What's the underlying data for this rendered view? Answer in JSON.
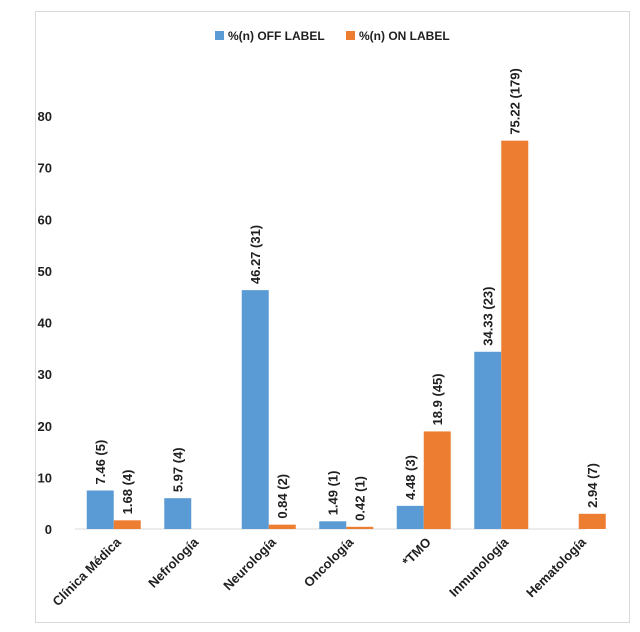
{
  "chart_data": {
    "type": "bar",
    "title": "",
    "xlabel": "",
    "ylabel": "",
    "ylim": [
      0,
      80
    ],
    "yticks": [
      0,
      10,
      20,
      30,
      40,
      50,
      60,
      70,
      80
    ],
    "grid": false,
    "legend_position": "top-center",
    "categories": [
      "Clínica Médica",
      "Nefrología",
      "Neurología",
      "Oncología",
      "*TMO",
      "Inmunología",
      "Hematología"
    ],
    "series": [
      {
        "name": "%(n) OFF LABEL",
        "color": "#5b9bd5",
        "values": [
          7.46,
          5.97,
          46.27,
          1.49,
          4.48,
          34.33,
          null
        ],
        "labels": [
          "7.46 (5)",
          "5.97 (4)",
          "46.27 (31)",
          "1.49 (1)",
          "4.48 (3)",
          "34.33 (23)",
          null
        ]
      },
      {
        "name": "%(n) ON LABEL",
        "color": "#ed7d31",
        "values": [
          1.68,
          null,
          0.84,
          0.42,
          18.9,
          75.22,
          2.94
        ],
        "labels": [
          "1.68 (4)",
          null,
          "0.84 (2)",
          "0.42 (1)",
          "18.9 (45)",
          "75.22 (179)",
          "2.94 (7)"
        ]
      }
    ]
  }
}
